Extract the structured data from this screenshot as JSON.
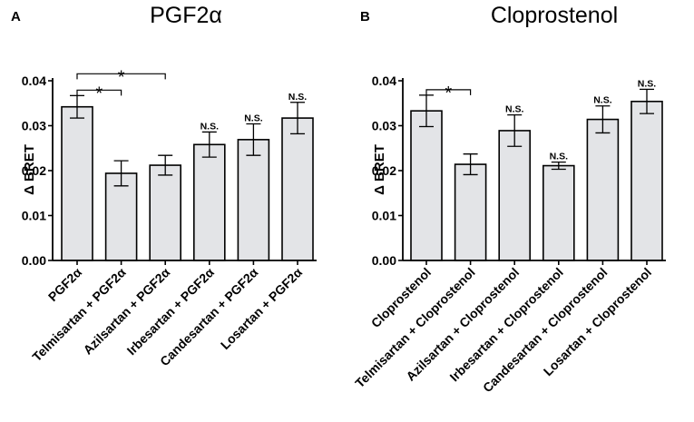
{
  "chart_data": [
    {
      "type": "bar",
      "panel_letter": "A",
      "title": "PGF2α",
      "ylabel": "Δ BRET",
      "xlabel": "",
      "ylim": [
        0,
        0.04
      ],
      "yticks": [
        "0.00",
        "0.01",
        "0.02",
        "0.03",
        "0.04"
      ],
      "categories": [
        "PGF2α",
        "Telmisartan + PGF2α",
        "Azilsartan + PGF2α",
        "Irbesartan + PGF2α",
        "Candesartan + PGF2α",
        "Losartan + PGF2α"
      ],
      "values": [
        0.0342,
        0.0194,
        0.0212,
        0.0258,
        0.0269,
        0.0317
      ],
      "errors": [
        0.0025,
        0.0028,
        0.0022,
        0.0028,
        0.0035,
        0.0035
      ],
      "annotations": [
        "",
        "",
        "",
        "N.S.",
        "N.S.",
        "N.S."
      ],
      "comparisons": [
        {
          "from": 0,
          "to": 1,
          "label": "*"
        },
        {
          "from": 0,
          "to": 2,
          "label": "*"
        }
      ]
    },
    {
      "type": "bar",
      "panel_letter": "B",
      "title": "Cloprostenol",
      "ylabel": "Δ BRET",
      "xlabel": "",
      "ylim": [
        0,
        0.04
      ],
      "yticks": [
        "0.00",
        "0.01",
        "0.02",
        "0.03",
        "0.04"
      ],
      "categories": [
        "Cloprostenol",
        "Telmisartan + Cloprostenol",
        "Azilsartan + Cloprostenol",
        "Irbesartan + Cloprostenol",
        "Candesartan + Cloprostenol",
        "Losartan + Cloprostenol"
      ],
      "values": [
        0.0333,
        0.0214,
        0.0289,
        0.0211,
        0.0314,
        0.0354
      ],
      "errors": [
        0.0035,
        0.0023,
        0.0035,
        0.0008,
        0.003,
        0.0027
      ],
      "annotations": [
        "",
        "",
        "N.S.",
        "N.S.",
        "N.S.",
        "N.S."
      ],
      "comparisons": [
        {
          "from": 0,
          "to": 1,
          "label": "*"
        }
      ]
    }
  ]
}
